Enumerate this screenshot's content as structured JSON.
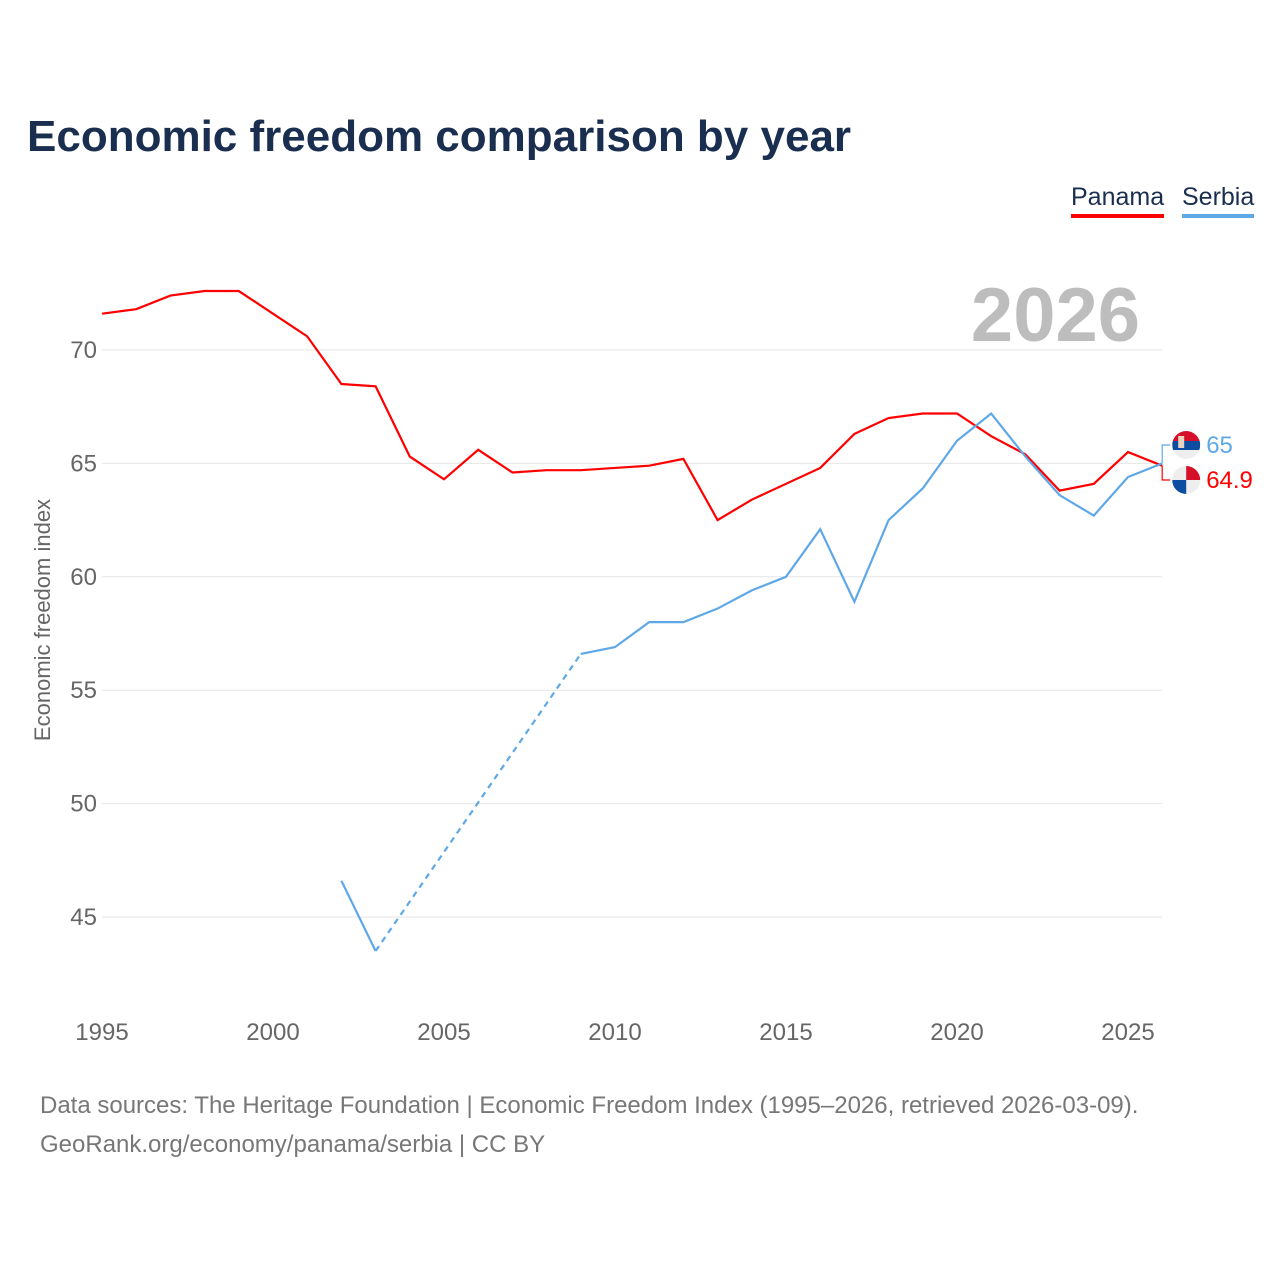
{
  "chart_data": {
    "type": "line",
    "title": "Economic freedom comparison by year",
    "ylabel": "Economic freedom index",
    "xlabel": "",
    "current_year_label": "2026",
    "x": [
      1995,
      1996,
      1997,
      1998,
      1999,
      2000,
      2001,
      2002,
      2003,
      2004,
      2005,
      2006,
      2007,
      2008,
      2009,
      2010,
      2011,
      2012,
      2013,
      2014,
      2015,
      2016,
      2017,
      2018,
      2019,
      2020,
      2021,
      2022,
      2023,
      2024,
      2025,
      2026
    ],
    "series": [
      {
        "name": "Panama",
        "color": "#ff0000",
        "end_label": "64.9",
        "values": [
          71.6,
          71.8,
          72.4,
          72.6,
          72.6,
          71.6,
          70.6,
          68.5,
          68.4,
          65.3,
          64.3,
          65.6,
          64.6,
          64.7,
          64.7,
          64.8,
          64.9,
          65.2,
          62.5,
          63.4,
          64.1,
          64.8,
          66.3,
          67.0,
          67.2,
          67.2,
          66.2,
          65.4,
          63.8,
          64.1,
          65.5,
          64.9
        ]
      },
      {
        "name": "Serbia",
        "color": "#5fa8e8",
        "end_label": "65",
        "values": [
          null,
          null,
          null,
          null,
          null,
          null,
          null,
          46.6,
          43.5,
          null,
          null,
          null,
          null,
          null,
          56.6,
          56.9,
          58.0,
          58.0,
          58.6,
          59.4,
          60.0,
          62.1,
          58.9,
          62.5,
          63.9,
          66.0,
          67.2,
          65.3,
          63.6,
          62.7,
          64.4,
          65.0
        ]
      }
    ],
    "xticks": [
      1995,
      2000,
      2005,
      2010,
      2015,
      2020,
      2025
    ],
    "yticks": [
      45,
      50,
      55,
      60,
      65,
      70
    ],
    "xlim": [
      1995,
      2026
    ],
    "ylim": [
      42,
      73
    ],
    "grid": true,
    "legend_placement": "top-right"
  },
  "legend": {
    "panama": "Panama",
    "serbia": "Serbia"
  },
  "footer": {
    "line1": "Data sources: The Heritage Foundation | Economic Freedom Index (1995–2026, retrieved 2026-03-09).",
    "line2": "GeoRank.org/economy/panama/serbia | CC BY"
  }
}
